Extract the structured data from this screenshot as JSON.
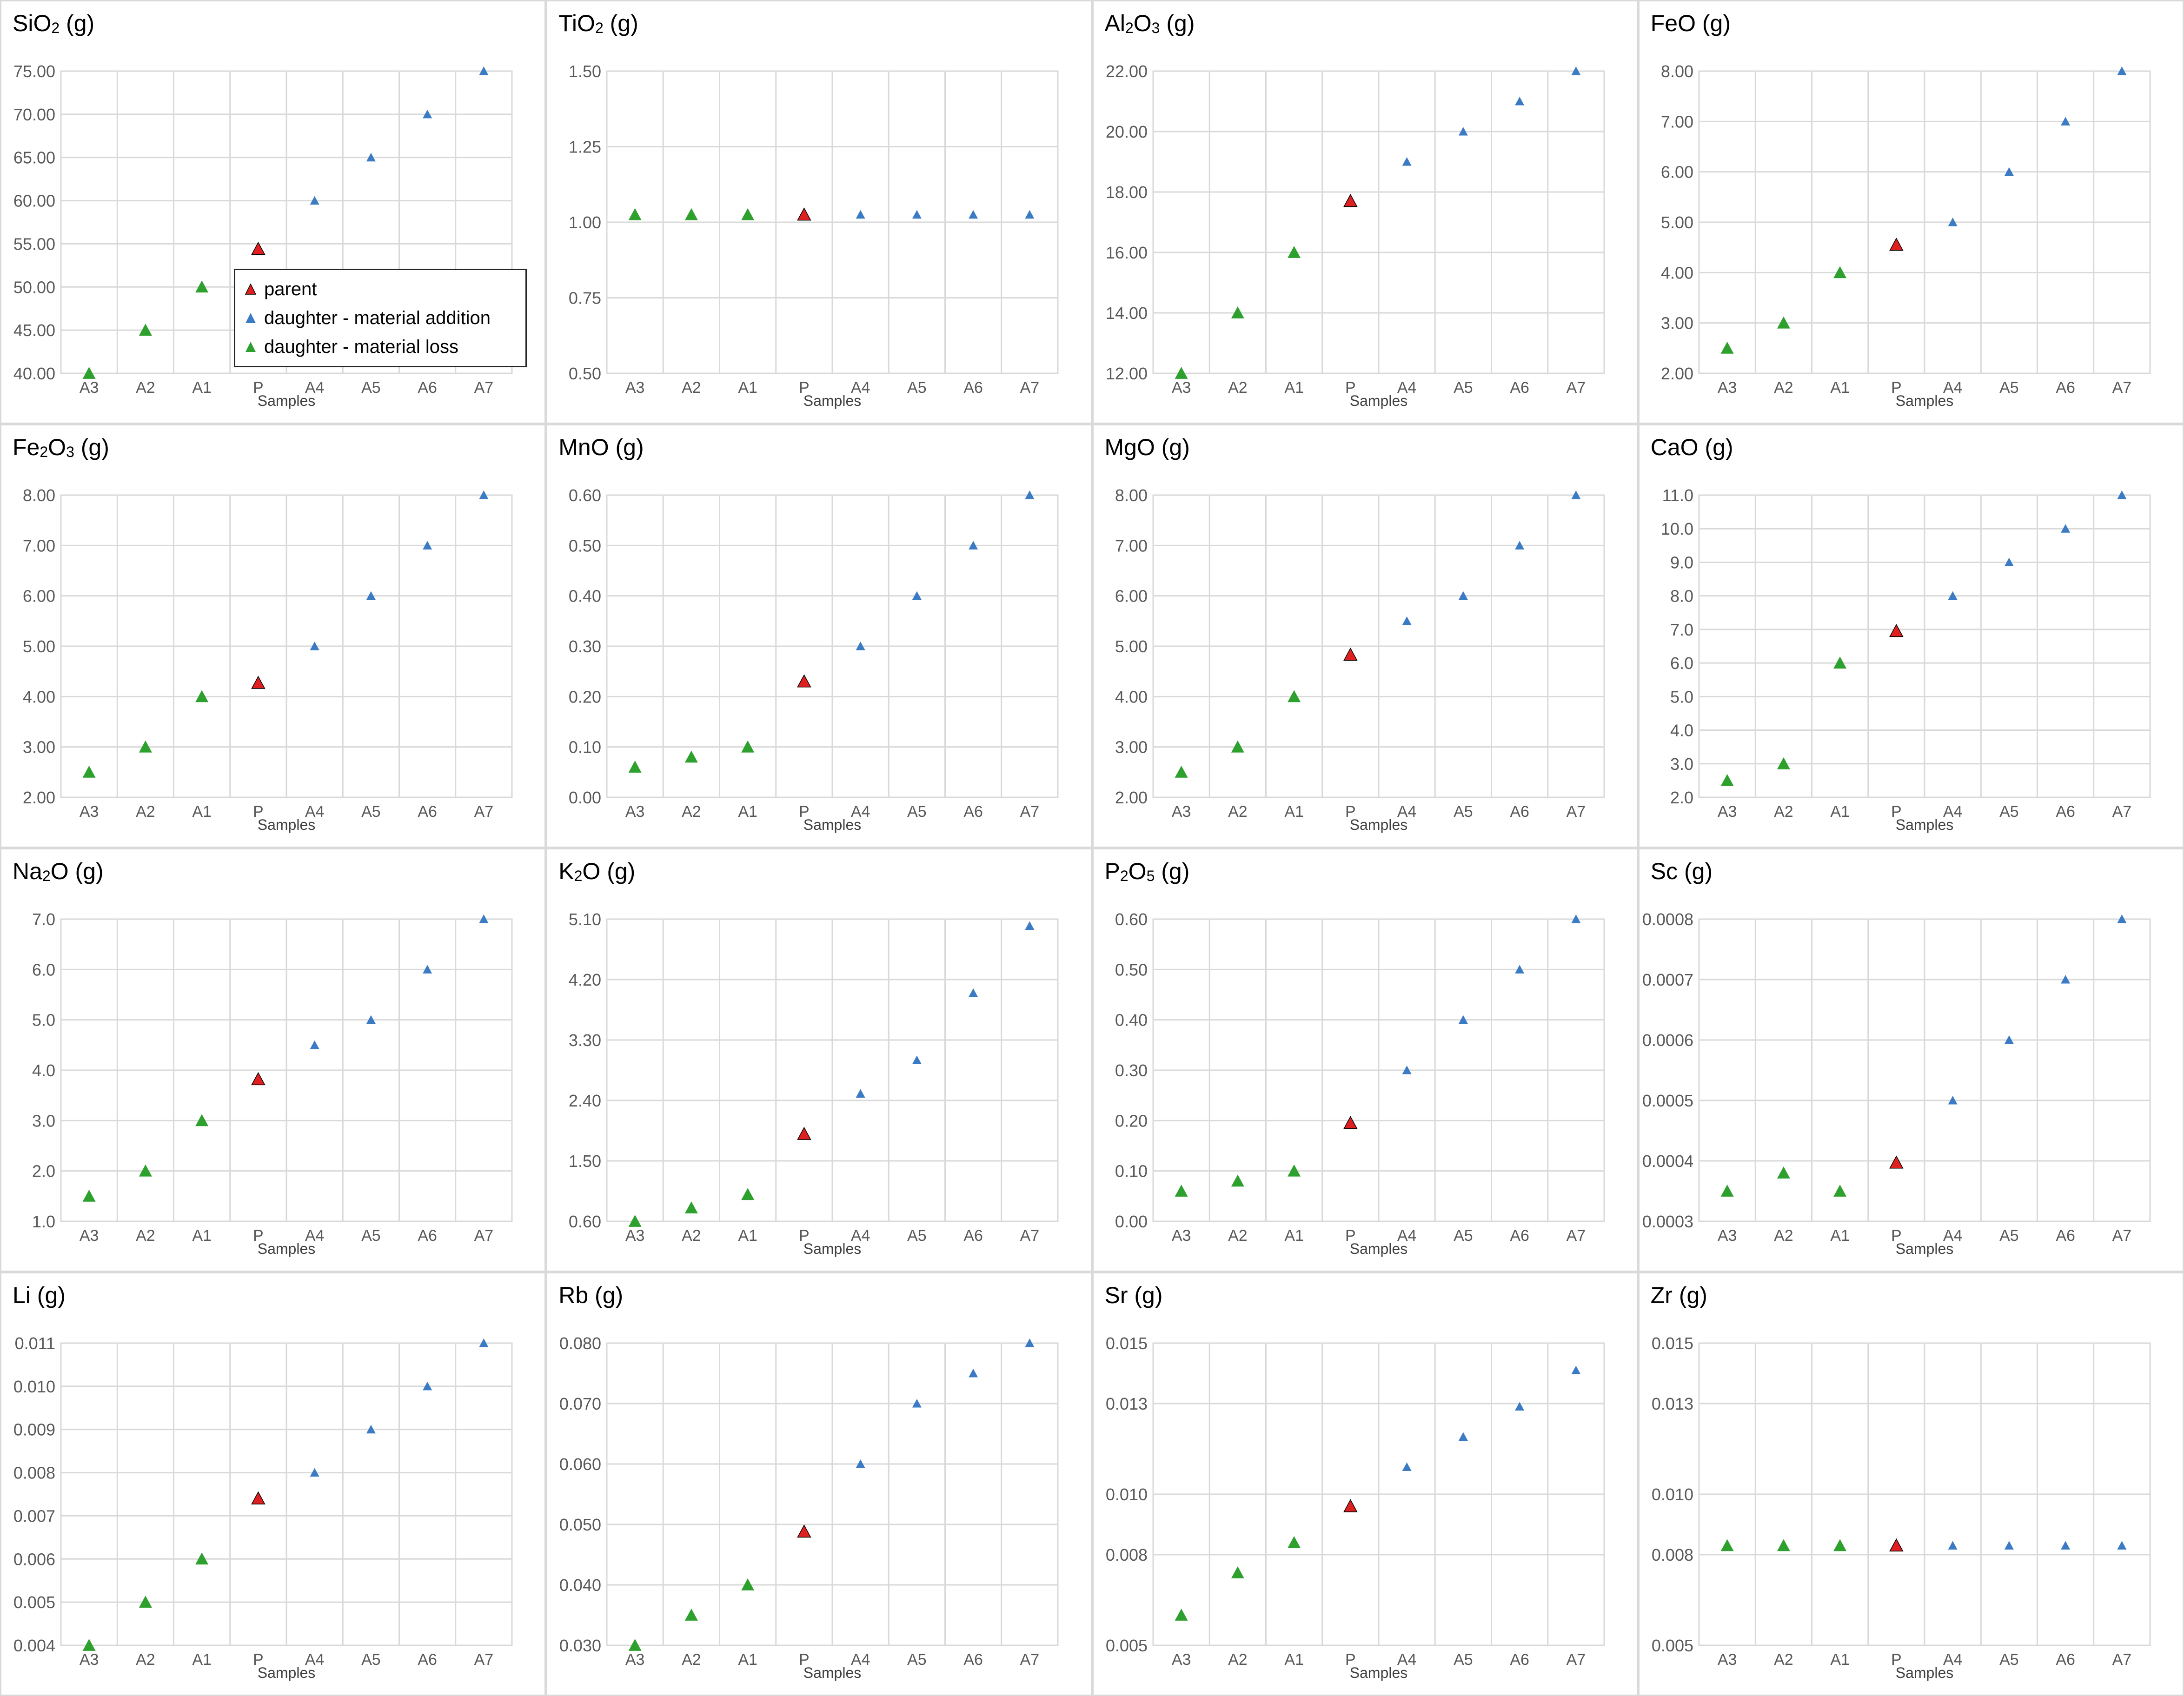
{
  "colors": {
    "parent": "#e02020",
    "addition": "#3b7bc4",
    "loss": "#2ea02e",
    "grid": "#d9d9d9",
    "axis_text": "#595959"
  },
  "legend": [
    {
      "key": "parent",
      "label": "parent"
    },
    {
      "key": "addition",
      "label": "daughter - material addition"
    },
    {
      "key": "loss",
      "label": "daughter - material loss"
    }
  ],
  "chart_data": [
    {
      "type": "scatter",
      "title_parts": [
        "SiO",
        "2",
        " (g)"
      ],
      "xlabel": "Samples",
      "categories": [
        "A3",
        "A2",
        "A1",
        "P",
        "A4",
        "A5",
        "A6",
        "A7"
      ],
      "values": [
        40,
        45,
        50,
        54.4,
        60,
        65,
        70,
        75
      ],
      "groups": [
        "loss",
        "loss",
        "loss",
        "parent",
        "addition",
        "addition",
        "addition",
        "addition"
      ],
      "ylim": [
        40,
        75
      ],
      "yticks": [
        "40.00",
        "45.00",
        "50.00",
        "55.00",
        "60.00",
        "65.00",
        "70.00",
        "75.00"
      ],
      "grid": true
    },
    {
      "type": "scatter",
      "title_parts": [
        "TiO",
        "2",
        " (g)"
      ],
      "xlabel": "Samples",
      "categories": [
        "A3",
        "A2",
        "A1",
        "P",
        "A4",
        "A5",
        "A6",
        "A7"
      ],
      "values": [
        1.025,
        1.025,
        1.025,
        1.025,
        1.025,
        1.025,
        1.025,
        1.025
      ],
      "groups": [
        "loss",
        "loss",
        "loss",
        "parent",
        "addition",
        "addition",
        "addition",
        "addition"
      ],
      "ylim": [
        0.5,
        1.5
      ],
      "yticks": [
        "0.50",
        "0.75",
        "1.00",
        "1.25",
        "1.50"
      ],
      "grid": true
    },
    {
      "type": "scatter",
      "title_parts": [
        "Al",
        "2",
        "O",
        "3",
        " (g)"
      ],
      "xlabel": "Samples",
      "categories": [
        "A3",
        "A2",
        "A1",
        "P",
        "A4",
        "A5",
        "A6",
        "A7"
      ],
      "values": [
        12,
        14,
        16,
        17.7,
        19,
        20,
        21,
        22
      ],
      "groups": [
        "loss",
        "loss",
        "loss",
        "parent",
        "addition",
        "addition",
        "addition",
        "addition"
      ],
      "ylim": [
        12,
        22
      ],
      "yticks": [
        "12.00",
        "14.00",
        "16.00",
        "18.00",
        "20.00",
        "22.00"
      ],
      "grid": true
    },
    {
      "type": "scatter",
      "title_parts": [
        "FeO  (g)"
      ],
      "xlabel": "Samples",
      "categories": [
        "A3",
        "A2",
        "A1",
        "P",
        "A4",
        "A5",
        "A6",
        "A7"
      ],
      "values": [
        2.5,
        3,
        4,
        4.55,
        5,
        6,
        7,
        8
      ],
      "groups": [
        "loss",
        "loss",
        "loss",
        "parent",
        "addition",
        "addition",
        "addition",
        "addition"
      ],
      "ylim": [
        2,
        8
      ],
      "yticks": [
        "2.00",
        "3.00",
        "4.00",
        "5.00",
        "6.00",
        "7.00",
        "8.00"
      ],
      "grid": true
    },
    {
      "type": "scatter",
      "title_parts": [
        "Fe",
        "2",
        "O",
        "3",
        " (g)"
      ],
      "xlabel": "Samples",
      "categories": [
        "A3",
        "A2",
        "A1",
        "P",
        "A4",
        "A5",
        "A6",
        "A7"
      ],
      "values": [
        2.5,
        3,
        4,
        4.27,
        5,
        6,
        7,
        8
      ],
      "groups": [
        "loss",
        "loss",
        "loss",
        "parent",
        "addition",
        "addition",
        "addition",
        "addition"
      ],
      "ylim": [
        2,
        8
      ],
      "yticks": [
        "2.00",
        "3.00",
        "4.00",
        "5.00",
        "6.00",
        "7.00",
        "8.00"
      ],
      "grid": true
    },
    {
      "type": "scatter",
      "title_parts": [
        "MnO (g)"
      ],
      "xlabel": "Samples",
      "categories": [
        "A3",
        "A2",
        "A1",
        "P",
        "A4",
        "A5",
        "A6",
        "A7"
      ],
      "values": [
        0.06,
        0.08,
        0.1,
        0.23,
        0.3,
        0.4,
        0.5,
        0.6
      ],
      "groups": [
        "loss",
        "loss",
        "loss",
        "parent",
        "addition",
        "addition",
        "addition",
        "addition"
      ],
      "ylim": [
        0,
        0.6
      ],
      "yticks": [
        "0.00",
        "0.10",
        "0.20",
        "0.30",
        "0.40",
        "0.50",
        "0.60"
      ],
      "grid": true
    },
    {
      "type": "scatter",
      "title_parts": [
        "MgO (g)"
      ],
      "xlabel": "Samples",
      "categories": [
        "A3",
        "A2",
        "A1",
        "P",
        "A4",
        "A5",
        "A6",
        "A7"
      ],
      "values": [
        2.5,
        3,
        4,
        4.83,
        5.5,
        6,
        7,
        8
      ],
      "groups": [
        "loss",
        "loss",
        "loss",
        "parent",
        "addition",
        "addition",
        "addition",
        "addition"
      ],
      "ylim": [
        2,
        8
      ],
      "yticks": [
        "2.00",
        "3.00",
        "4.00",
        "5.00",
        "6.00",
        "7.00",
        "8.00"
      ],
      "grid": true
    },
    {
      "type": "scatter",
      "title_parts": [
        "CaO (g)"
      ],
      "xlabel": "Samples",
      "categories": [
        "A3",
        "A2",
        "A1",
        "P",
        "A4",
        "A5",
        "A6",
        "A7"
      ],
      "values": [
        2.5,
        3,
        6,
        6.95,
        8,
        9,
        10,
        11
      ],
      "groups": [
        "loss",
        "loss",
        "loss",
        "parent",
        "addition",
        "addition",
        "addition",
        "addition"
      ],
      "ylim": [
        2,
        11
      ],
      "yticks": [
        "2.0",
        "3.0",
        "4.0",
        "5.0",
        "6.0",
        "7.0",
        "8.0",
        "9.0",
        "10.0",
        "11.0"
      ],
      "grid": true
    },
    {
      "type": "scatter",
      "title_parts": [
        "Na",
        "2",
        "O (g)"
      ],
      "xlabel": "Samples",
      "categories": [
        "A3",
        "A2",
        "A1",
        "P",
        "A4",
        "A5",
        "A6",
        "A7"
      ],
      "values": [
        1.5,
        2,
        3,
        3.82,
        4.5,
        5,
        6,
        7
      ],
      "groups": [
        "loss",
        "loss",
        "loss",
        "parent",
        "addition",
        "addition",
        "addition",
        "addition"
      ],
      "ylim": [
        1,
        7
      ],
      "yticks": [
        "1.0",
        "2.0",
        "3.0",
        "4.0",
        "5.0",
        "6.0",
        "7.0"
      ],
      "grid": true
    },
    {
      "type": "scatter",
      "title_parts": [
        "K",
        "2",
        "O (g)"
      ],
      "xlabel": "Samples",
      "categories": [
        "A3",
        "A2",
        "A1",
        "P",
        "A4",
        "A5",
        "A6",
        "A7"
      ],
      "values": [
        0.6,
        0.8,
        1,
        1.9,
        2.5,
        3,
        4,
        5
      ],
      "groups": [
        "loss",
        "loss",
        "loss",
        "parent",
        "addition",
        "addition",
        "addition",
        "addition"
      ],
      "ylim": [
        0.6,
        5.1
      ],
      "yticks": [
        "0.60",
        "1.50",
        "2.40",
        "3.30",
        "4.20",
        "5.10"
      ],
      "grid": true
    },
    {
      "type": "scatter",
      "title_parts": [
        "P",
        "2",
        "O",
        "5",
        " (g)"
      ],
      "xlabel": "Samples",
      "categories": [
        "A3",
        "A2",
        "A1",
        "P",
        "A4",
        "A5",
        "A6",
        "A7"
      ],
      "values": [
        0.06,
        0.08,
        0.1,
        0.195,
        0.3,
        0.4,
        0.5,
        0.6
      ],
      "groups": [
        "loss",
        "loss",
        "loss",
        "parent",
        "addition",
        "addition",
        "addition",
        "addition"
      ],
      "ylim": [
        0,
        0.6
      ],
      "yticks": [
        "0.00",
        "0.10",
        "0.20",
        "0.30",
        "0.40",
        "0.50",
        "0.60"
      ],
      "grid": true
    },
    {
      "type": "scatter",
      "title_parts": [
        "Sc (g)"
      ],
      "xlabel": "Samples",
      "categories": [
        "A3",
        "A2",
        "A1",
        "P",
        "A4",
        "A5",
        "A6",
        "A7"
      ],
      "values": [
        0.00035,
        0.00038,
        0.00035,
        0.000397,
        0.0005,
        0.0006,
        0.0007,
        0.0008
      ],
      "groups": [
        "loss",
        "loss",
        "loss",
        "parent",
        "addition",
        "addition",
        "addition",
        "addition"
      ],
      "ylim": [
        0.0003,
        0.0008
      ],
      "yticks": [
        "0.0003",
        "0.0004",
        "0.0005",
        "0.0006",
        "0.0007",
        "0.0008"
      ],
      "grid": true
    },
    {
      "type": "scatter",
      "title_parts": [
        "Li (g)"
      ],
      "xlabel": "Samples",
      "categories": [
        "A3",
        "A2",
        "A1",
        "P",
        "A4",
        "A5",
        "A6",
        "A7"
      ],
      "values": [
        0.004,
        0.005,
        0.006,
        0.0074,
        0.008,
        0.009,
        0.01,
        0.011
      ],
      "groups": [
        "loss",
        "loss",
        "loss",
        "parent",
        "addition",
        "addition",
        "addition",
        "addition"
      ],
      "ylim": [
        0.004,
        0.011
      ],
      "yticks": [
        "0.004",
        "0.005",
        "0.006",
        "0.007",
        "0.008",
        "0.009",
        "0.010",
        "0.011"
      ],
      "grid": true
    },
    {
      "type": "scatter",
      "title_parts": [
        "Rb (g)"
      ],
      "xlabel": "Samples",
      "categories": [
        "A3",
        "A2",
        "A1",
        "P",
        "A4",
        "A5",
        "A6",
        "A7"
      ],
      "values": [
        0.03,
        0.035,
        0.04,
        0.0488,
        0.06,
        0.07,
        0.075,
        0.08
      ],
      "groups": [
        "loss",
        "loss",
        "loss",
        "parent",
        "addition",
        "addition",
        "addition",
        "addition"
      ],
      "ylim": [
        0.03,
        0.08
      ],
      "yticks": [
        "0.030",
        "0.040",
        "0.050",
        "0.060",
        "0.070",
        "0.080"
      ],
      "grid": true
    },
    {
      "type": "scatter",
      "title_parts": [
        "Sr (g)"
      ],
      "xlabel": "Samples",
      "categories": [
        "A3",
        "A2",
        "A1",
        "P",
        "A4",
        "A5",
        "A6",
        "A7"
      ],
      "values": [
        0.006,
        0.0074,
        0.0084,
        0.0096,
        0.0109,
        0.0119,
        0.0129,
        0.0141
      ],
      "groups": [
        "loss",
        "loss",
        "loss",
        "parent",
        "addition",
        "addition",
        "addition",
        "addition"
      ],
      "ylim": [
        0.005,
        0.015
      ],
      "yticks": [
        "0.005",
        "0.008",
        "0.010",
        "0.013",
        "0.015"
      ],
      "grid": true
    },
    {
      "type": "scatter",
      "title_parts": [
        "Zr (g)"
      ],
      "xlabel": "Samples",
      "categories": [
        "A3",
        "A2",
        "A1",
        "P",
        "A4",
        "A5",
        "A6",
        "A7"
      ],
      "values": [
        0.0083,
        0.0083,
        0.0083,
        0.0083,
        0.0083,
        0.0083,
        0.0083,
        0.0083
      ],
      "groups": [
        "loss",
        "loss",
        "loss",
        "parent",
        "addition",
        "addition",
        "addition",
        "addition"
      ],
      "ylim": [
        0.005,
        0.015
      ],
      "yticks": [
        "0.005",
        "0.008",
        "0.010",
        "0.013",
        "0.015"
      ],
      "grid": true
    }
  ]
}
